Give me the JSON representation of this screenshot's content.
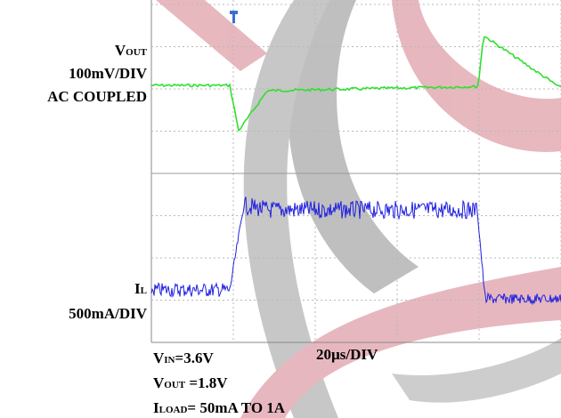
{
  "labels": {
    "vout": {
      "main": "V",
      "sub": "OUT"
    },
    "vout_scale": "100mV/DIV",
    "coupling": "AC COUPLED",
    "il": {
      "main": "I",
      "sub": "L"
    },
    "il_scale": "500mA/DIV",
    "time_scale": "20µs/DIV"
  },
  "conditions": {
    "vin": {
      "main": "V",
      "sub": "IN",
      "rest": "=3.6V"
    },
    "vout": {
      "main": "V",
      "sub": "OUT",
      "rest": " =1.8V"
    },
    "iload": {
      "main": "I",
      "sub": "LOAD",
      "rest": "= 50mA TO 1A"
    }
  }
}
